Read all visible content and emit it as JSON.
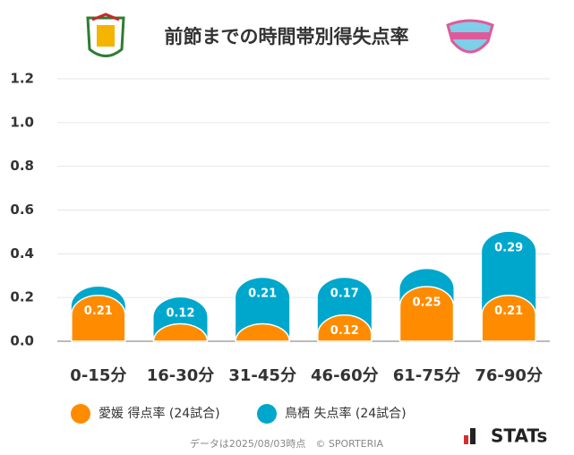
{
  "chart_data": {
    "type": "stacked-bar",
    "title": "前節までの時間帯別得失点率",
    "categories": [
      "0-15分",
      "16-30分",
      "31-45分",
      "46-60分",
      "61-75分",
      "76-90分"
    ],
    "series": [
      {
        "name": "愛媛 得点率 (24試合)",
        "color": "#ff8c00",
        "values": [
          0.21,
          0.08,
          0.08,
          0.12,
          0.25,
          0.21
        ],
        "value_labels": [
          "0.21",
          null,
          null,
          "0.12",
          "0.25",
          "0.21"
        ]
      },
      {
        "name": "鳥栖 失点率 (24試合)",
        "color": "#00a7cc",
        "values": [
          0.04,
          0.12,
          0.21,
          0.17,
          0.08,
          0.29
        ],
        "value_labels": [
          null,
          "0.12",
          "0.21",
          "0.17",
          null,
          "0.29"
        ]
      }
    ],
    "ylim": [
      0,
      1.2
    ],
    "yticks": [
      {
        "value": 0,
        "label": "0.0"
      },
      0.2,
      0.4,
      0.6,
      0.8,
      {
        "value": 1,
        "label": "1.0"
      },
      1.2
    ],
    "grid": true,
    "footnote": "データは2025/08/03時点　© SPORTERIA",
    "brand": "STATs"
  }
}
